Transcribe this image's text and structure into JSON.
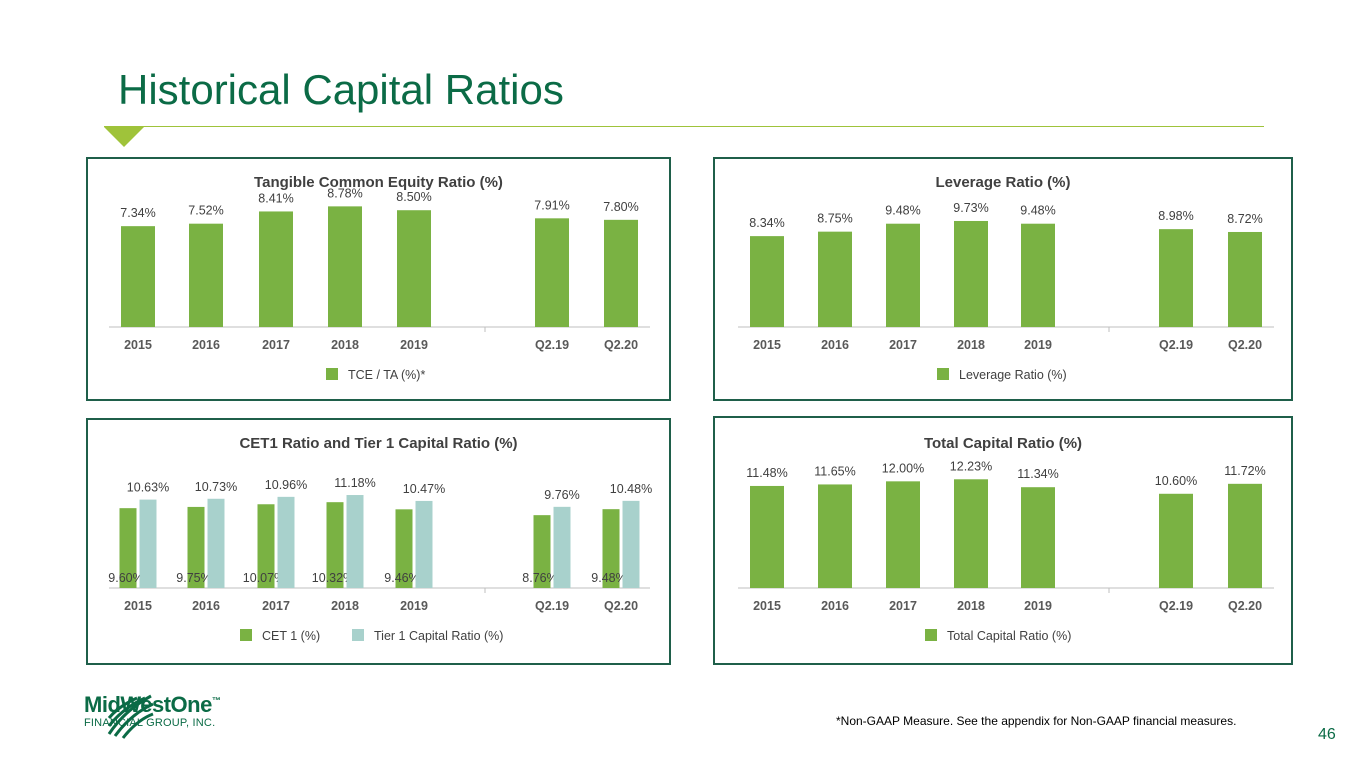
{
  "page": {
    "title": "Historical Capital Ratios",
    "footnote": "*Non-GAAP Measure. See the appendix for Non-GAAP financial measures.",
    "page_number": "46",
    "logo": {
      "name": "MidWestOne",
      "trademark": "™",
      "subtitle": "FINANCIAL GROUP, INC."
    }
  },
  "colors": {
    "green": "#7ab243",
    "teal": "#a8d1cc",
    "title": "#0b6b46",
    "border": "#1f5f4a"
  },
  "chart_data": [
    {
      "type": "bar",
      "title": "Tangible Common Equity Ratio (%)",
      "categories": [
        "2015",
        "2016",
        "2017",
        "2018",
        "2019",
        "Q2.19",
        "Q2.20"
      ],
      "series": [
        {
          "name": "TCE / TA (%)*",
          "values": [
            7.34,
            7.52,
            8.41,
            8.78,
            8.5,
            7.91,
            7.8
          ],
          "labels": [
            "7.34%",
            "7.52%",
            "8.41%",
            "8.78%",
            "8.50%",
            "7.91%",
            "7.80%"
          ]
        }
      ],
      "ylim": [
        0,
        11.5
      ],
      "legend": "bottom"
    },
    {
      "type": "bar",
      "title": "Leverage Ratio (%)",
      "categories": [
        "2015",
        "2016",
        "2017",
        "2018",
        "2019",
        "Q2.19",
        "Q2.20"
      ],
      "series": [
        {
          "name": "Leverage Ratio (%)",
          "values": [
            8.34,
            8.75,
            9.48,
            9.73,
            9.48,
            8.98,
            8.72
          ],
          "labels": [
            "8.34%",
            "8.75%",
            "9.48%",
            "9.73%",
            "9.48%",
            "8.98%",
            "8.72%"
          ]
        }
      ],
      "ylim": [
        0,
        14.5
      ],
      "legend": "bottom"
    },
    {
      "type": "bar",
      "title": "CET1 Ratio and Tier 1 Capital Ratio (%)",
      "categories": [
        "2015",
        "2016",
        "2017",
        "2018",
        "2019",
        "Q2.19",
        "Q2.20"
      ],
      "series": [
        {
          "name": "CET 1 (%)",
          "values": [
            9.6,
            9.75,
            10.07,
            10.32,
            9.46,
            8.76,
            9.48
          ],
          "labels": [
            "9.60%",
            "9.75%",
            "10.07%",
            "10.32%",
            "9.46%",
            "8.76%",
            "9.48%"
          ]
        },
        {
          "name": "Tier 1 Capital Ratio (%)",
          "values": [
            10.63,
            10.73,
            10.96,
            11.18,
            10.47,
            9.76,
            10.48
          ],
          "labels": [
            "10.63%",
            "10.73%",
            "10.96%",
            "11.18%",
            "10.47%",
            "9.76%",
            "10.48%"
          ]
        }
      ],
      "ylim": [
        0,
        19
      ],
      "legend": "bottom"
    },
    {
      "type": "bar",
      "title": "Total Capital Ratio (%)",
      "categories": [
        "2015",
        "2016",
        "2017",
        "2018",
        "2019",
        "Q2.19",
        "Q2.20"
      ],
      "series": [
        {
          "name": "Total Capital Ratio (%)",
          "values": [
            11.48,
            11.65,
            12.0,
            12.23,
            11.34,
            10.6,
            11.72
          ],
          "labels": [
            "11.48%",
            "11.65%",
            "12.00%",
            "12.23%",
            "11.34%",
            "10.60%",
            "11.72%"
          ]
        }
      ],
      "ylim": [
        0,
        18
      ],
      "legend": "bottom"
    }
  ]
}
